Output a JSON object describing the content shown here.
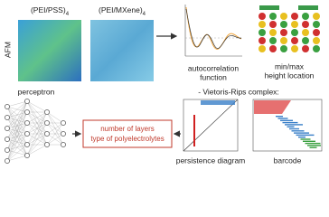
{
  "samples": [
    {
      "name": "(PEI/PSS)",
      "sub": "4"
    },
    {
      "name": "(PEI/MXene)",
      "sub": "4"
    }
  ],
  "method": "AFM",
  "features": {
    "autocorrelation": [
      "autocorrelation",
      "function"
    ],
    "minmax": [
      "min/max",
      "height location"
    ]
  },
  "tda": {
    "title": "- Vietoris-Rips complex:",
    "persistence": "persistence diagram",
    "barcode": "barcode"
  },
  "network": {
    "label": "perceptron"
  },
  "output": {
    "lines": [
      "number of layers",
      "type of polyelectrolytes"
    ]
  }
}
